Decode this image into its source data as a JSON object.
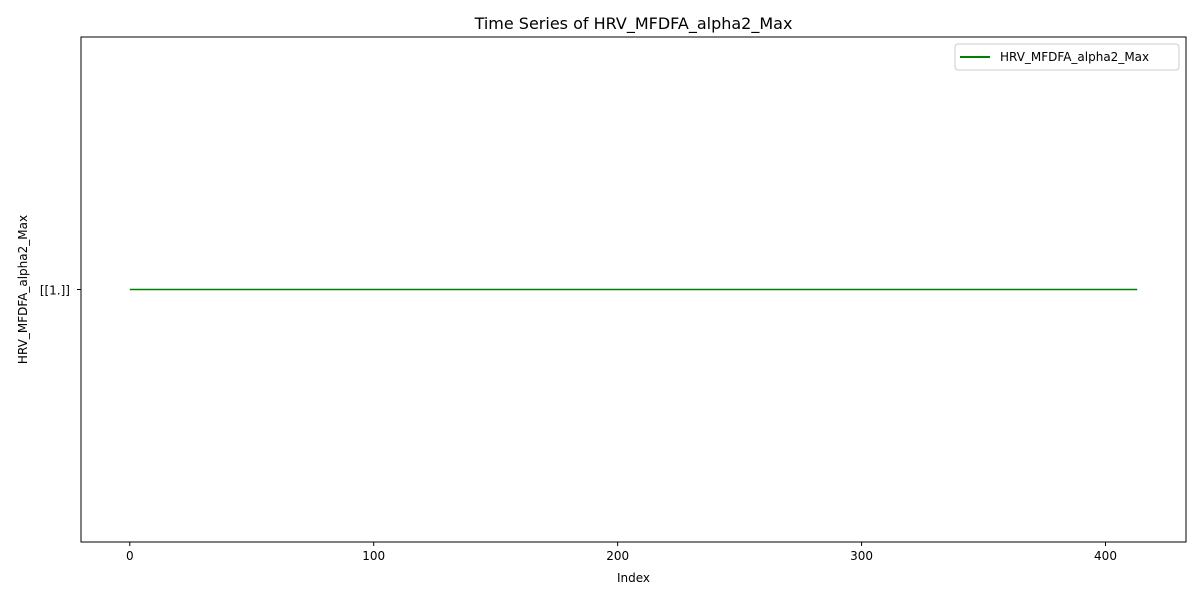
{
  "chart_data": {
    "type": "line",
    "title": "Time Series of HRV_MFDFA_alpha2_Max",
    "xlabel": "Index",
    "ylabel": "HRV_MFDFA_alpha2_Max",
    "xlim": [
      -20,
      433
    ],
    "x_ticks": [
      0,
      100,
      200,
      300,
      400
    ],
    "y_tick_label": "[[1.]]",
    "grid": false,
    "legend_position": "top-right",
    "series": [
      {
        "name": "HRV_MFDFA_alpha2_Max",
        "color": "#008000",
        "x": [
          0,
          413
        ],
        "y": [
          1,
          1
        ]
      }
    ]
  }
}
